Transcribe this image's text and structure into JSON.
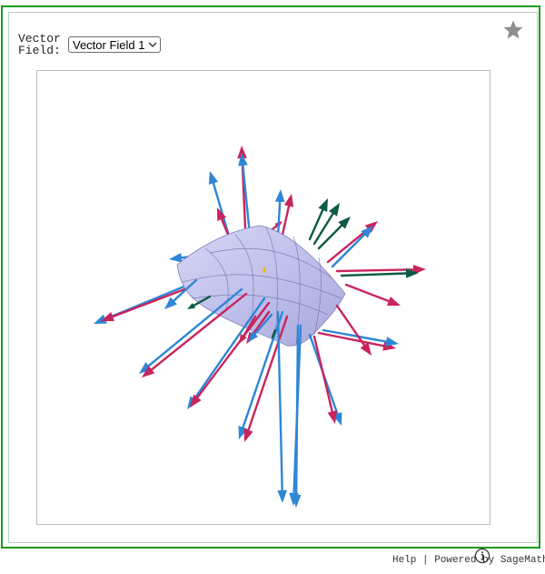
{
  "controls": {
    "label_line1": "Vector",
    "label_line2": "Field:",
    "selected_field": "Vector Field 1"
  },
  "footer": {
    "help": "Help",
    "separator": " | ",
    "powered_by": "Powered by SageMath"
  },
  "colors": {
    "frame": "#1e9b1e",
    "blue_vector": "#2e86d6",
    "magenta_vector": "#c8245e",
    "green_vector": "#0d5a47",
    "normal_vector": "#f2b418",
    "surface": "#c3c3ee"
  },
  "icons": {
    "favorite": "star-icon",
    "info": "info-icon",
    "dropdown": "chevron-down-icon"
  }
}
